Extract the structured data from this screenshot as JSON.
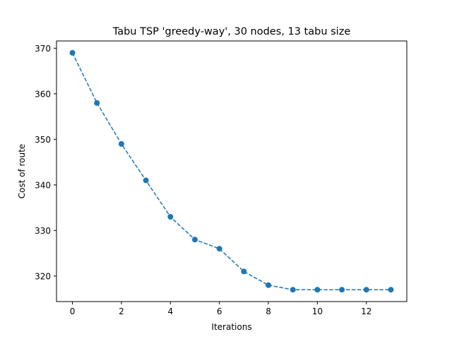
{
  "chart_data": {
    "type": "line",
    "title": "Tabu TSP 'greedy-way', 30 nodes, 13 tabu size",
    "xlabel": "Iterations",
    "ylabel": "Cost of route",
    "xlim": [
      -0.65,
      13.65
    ],
    "ylim": [
      314.4,
      371.6
    ],
    "xticks": [
      0,
      2,
      4,
      6,
      8,
      10,
      12
    ],
    "yticks": [
      320,
      330,
      340,
      350,
      360,
      370
    ],
    "grid": false,
    "series": [
      {
        "color": "#1f77b4",
        "linestyle": "dashed",
        "marker": "circle",
        "x": [
          0,
          1,
          2,
          3,
          4,
          5,
          6,
          7,
          8,
          9,
          10,
          11,
          12,
          13
        ],
        "y": [
          369,
          358,
          349,
          341,
          333,
          328,
          326,
          321,
          318,
          317,
          317,
          317,
          317,
          317
        ]
      }
    ]
  }
}
